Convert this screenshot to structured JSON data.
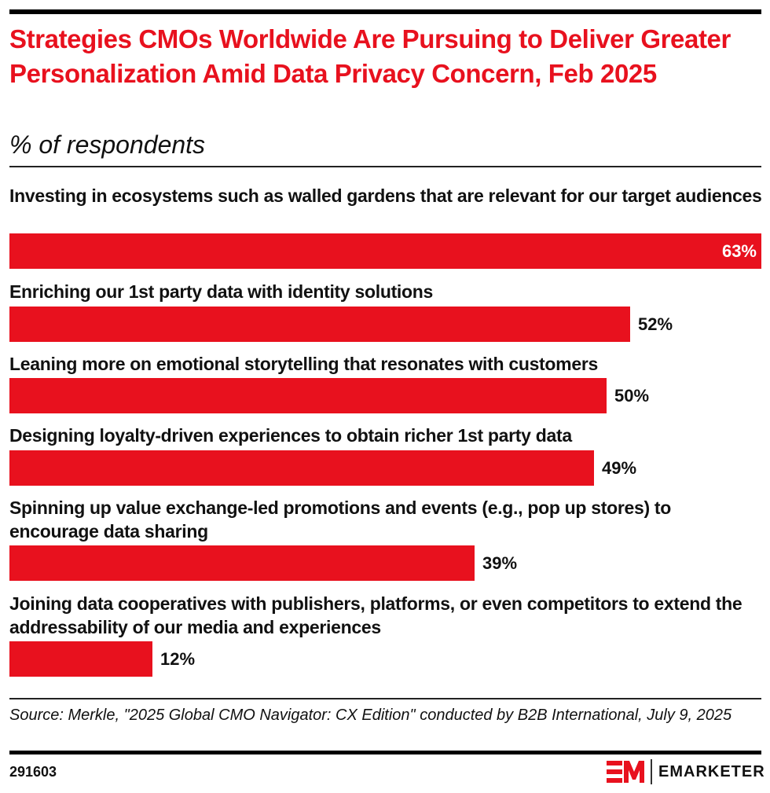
{
  "header": {
    "title": "Strategies CMOs Worldwide Are Pursuing to Deliver Greater Personalization Amid Data Privacy Concern, Feb 2025",
    "subtitle": "% of respondents"
  },
  "chart_data": {
    "type": "bar",
    "orientation": "horizontal",
    "title": "Strategies CMOs Worldwide Are Pursuing to Deliver Greater Personalization Amid Data Privacy Concern, Feb 2025",
    "subtitle": "% of respondents",
    "xlabel": "",
    "ylabel": "",
    "xlim": [
      0,
      63
    ],
    "grid": false,
    "bar_color": "#e8111e",
    "categories": [
      "Investing in ecosystems such as walled gardens that are relevant for our target audiences",
      "Enriching our 1st party data with identity solutions",
      "Leaning more on emotional storytelling that resonates with customers",
      "Designing loyalty-driven experiences to obtain richer 1st party data",
      "Spinning up value exchange-led promotions and events (e.g., pop up stores) to encourage data sharing",
      "Joining data cooperatives with publishers, platforms, or even competitors to extend the addressability of our media and experiences"
    ],
    "values": [
      63,
      52,
      50,
      49,
      39,
      12
    ],
    "value_labels": [
      "63%",
      "52%",
      "50%",
      "49%",
      "39%",
      "12%"
    ]
  },
  "footer": {
    "source": "Source: Merkle, \"2025 Global CMO Navigator: CX Edition\" conducted by B2B International, July 9, 2025",
    "chart_id": "291603",
    "brand": "EMARKETER",
    "brand_color": "#e8111e"
  }
}
